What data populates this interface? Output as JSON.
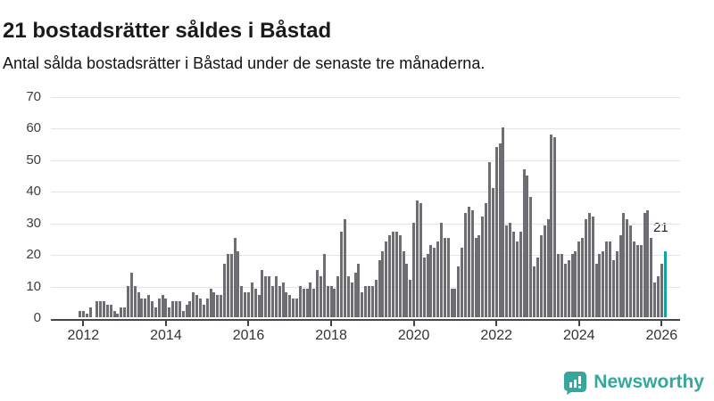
{
  "header": {
    "title": "21 bostadsrätter såldes i Båstad",
    "subtitle": "Antal sålda bostadsrätter i Båstad under de senaste tre månaderna."
  },
  "logo": {
    "text": "Newsworthy",
    "color": "#35a79d",
    "icon": "bar-chart-speech-bubble"
  },
  "colors": {
    "bar": "#6e6d72",
    "highlight": "#14a1a1",
    "gridline": "#e3e3e3",
    "axis": "#454549",
    "title": "#1a1a1a",
    "text": "#333333"
  },
  "chart_data": {
    "type": "bar",
    "title": "21 bostadsrätter såldes i Båstad",
    "subtitle": "Antal sålda bostadsrätter i Båstad under de senaste tre månaderna.",
    "frequency": "monthly",
    "start_month": "2011-12",
    "end_month": "2026-02",
    "values": [
      2,
      2,
      1,
      3,
      0,
      5,
      5,
      5,
      4,
      4,
      2,
      1,
      3,
      3,
      10,
      14,
      10,
      8,
      6,
      6,
      7,
      5,
      3,
      6,
      7,
      6,
      3,
      5,
      5,
      5,
      2,
      4,
      5,
      8,
      7,
      6,
      4,
      6,
      9,
      8,
      7,
      7,
      17,
      20,
      20,
      25,
      21,
      10,
      8,
      8,
      11,
      9,
      7,
      15,
      13,
      13,
      10,
      13,
      10,
      11,
      8,
      7,
      6,
      6,
      10,
      9,
      9,
      11,
      9,
      15,
      13,
      20,
      10,
      10,
      9,
      13,
      27,
      31,
      13,
      11,
      14,
      17,
      8,
      10,
      10,
      10,
      12,
      18,
      21,
      24,
      26,
      27,
      27,
      26,
      21,
      17,
      12,
      30,
      37,
      36,
      19,
      20,
      23,
      22,
      24,
      30,
      25,
      25,
      9,
      9,
      16,
      22,
      33,
      35,
      34,
      25,
      26,
      32,
      36,
      49,
      41,
      54,
      55,
      60,
      29,
      30,
      27,
      24,
      27,
      47,
      45,
      38,
      16,
      19,
      26,
      29,
      31,
      58,
      57,
      20,
      20,
      17,
      18,
      20,
      21,
      24,
      25,
      31,
      33,
      32,
      17,
      20,
      21,
      24,
      24,
      18,
      21,
      26,
      33,
      31,
      29,
      24,
      23,
      23,
      33,
      34,
      25,
      11,
      13,
      17,
      21
    ],
    "highlight_last": {
      "value": 21,
      "label": "21",
      "color": "#14a1a1"
    },
    "annotation_label": "21",
    "ylim": [
      0,
      70
    ],
    "yticks": [
      0,
      10,
      20,
      30,
      40,
      50,
      60,
      70
    ],
    "xticks": [
      "2012",
      "2014",
      "2016",
      "2018",
      "2020",
      "2022",
      "2024",
      "2026"
    ],
    "xtick_month_indices": [
      1,
      25,
      49,
      73,
      97,
      121,
      145,
      169
    ],
    "grid": "horizontal",
    "legend": "none"
  }
}
